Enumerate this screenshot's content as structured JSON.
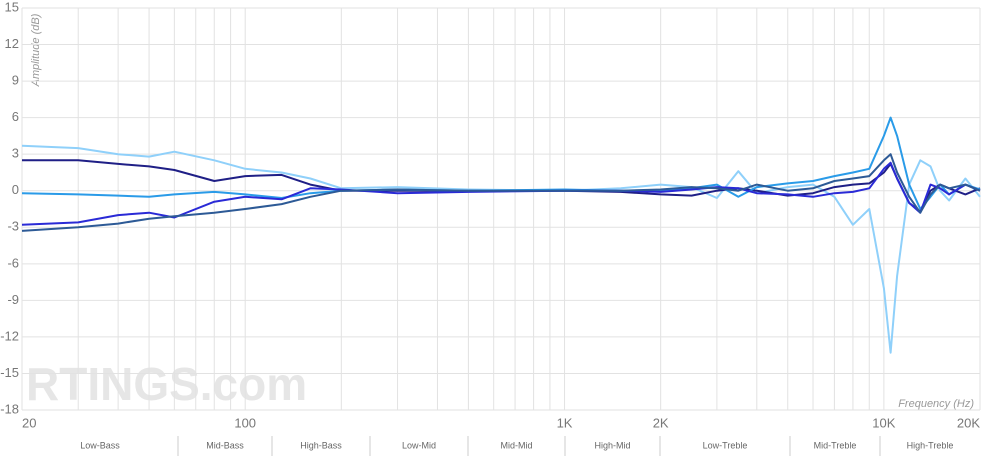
{
  "chart_data": {
    "type": "line",
    "log_x": true,
    "grid": true,
    "y_label": "Amplitude (dB)",
    "x_label": "Frequency (Hz)",
    "watermark": "RTINGS.com",
    "xlim": [
      20,
      20000
    ],
    "ylim": [
      -18,
      15
    ],
    "xticks": [
      20,
      100,
      {
        "value": 1000,
        "label": "1K"
      },
      {
        "value": 2000,
        "label": "2K"
      },
      {
        "value": 10000,
        "label": "10K"
      },
      {
        "value": 20000,
        "label": "20K"
      }
    ],
    "xgrid": [
      30,
      40,
      50,
      60,
      70,
      80,
      90,
      200,
      300,
      400,
      500,
      600,
      700,
      800,
      900,
      3000,
      4000,
      5000,
      6000,
      7000,
      8000,
      9000
    ],
    "yticks": [
      15,
      12,
      9,
      6,
      3,
      0,
      -3,
      -6,
      -9,
      -12,
      -15,
      -18
    ],
    "bands": [
      "Low-Bass",
      "Mid-Bass",
      "High-Bass",
      "Low-Mid",
      "Mid-Mid",
      "High-Mid",
      "Low-Treble",
      "Mid-Treble",
      "High-Treble"
    ],
    "x": [
      20,
      30,
      40,
      50,
      60,
      80,
      100,
      130,
      160,
      200,
      300,
      500,
      1000,
      1500,
      2000,
      2500,
      3000,
      3500,
      4000,
      5000,
      6000,
      7000,
      8000,
      9000,
      10000,
      10500,
      11000,
      12000,
      13000,
      14000,
      15000,
      16000,
      18000,
      20000
    ],
    "series": [
      {
        "color": "#8fd0fa",
        "values": [
          3.7,
          3.5,
          3.0,
          2.8,
          3.2,
          2.5,
          1.8,
          1.5,
          1.0,
          0.2,
          0.3,
          0.1,
          0,
          0.2,
          0.5,
          0.3,
          -0.6,
          1.6,
          -0.2,
          0.3,
          0.5,
          -0.5,
          -2.8,
          -1.5,
          -8,
          -13.3,
          -7,
          0.5,
          2.5,
          2.0,
          0,
          -0.8,
          1.0,
          -0.5
        ]
      },
      {
        "color": "#1f1f86",
        "values": [
          2.5,
          2.5,
          2.2,
          2.0,
          1.7,
          0.8,
          1.2,
          1.3,
          0.5,
          0,
          0,
          0,
          0,
          -0.1,
          -0.3,
          -0.4,
          0,
          0.2,
          0,
          -0.4,
          -0.2,
          0.3,
          0.5,
          0.6,
          1.5,
          2.2,
          1.0,
          -1.0,
          -1.7,
          0,
          0.5,
          0.2,
          -0.3,
          0.2
        ]
      },
      {
        "color": "#2a9be8",
        "values": [
          -0.2,
          -0.3,
          -0.4,
          -0.5,
          -0.3,
          -0.1,
          -0.3,
          -0.6,
          -0.2,
          0,
          0.1,
          0,
          0.1,
          0,
          0,
          0.2,
          0.5,
          -0.5,
          0.3,
          0.6,
          0.8,
          1.2,
          1.5,
          1.8,
          4.5,
          6.0,
          4.5,
          0.5,
          -1.5,
          -0.5,
          0.5,
          -0.3,
          0.5,
          0.1
        ]
      },
      {
        "color": "#2a2ad6",
        "values": [
          -2.8,
          -2.6,
          -2.0,
          -1.8,
          -2.2,
          -0.9,
          -0.5,
          -0.7,
          0.2,
          0.1,
          -0.2,
          -0.1,
          0,
          0,
          -0.1,
          0.1,
          0.3,
          0.2,
          -0.2,
          -0.3,
          -0.5,
          -0.2,
          -0.1,
          0.2,
          1.8,
          2.3,
          1.0,
          -1.0,
          -1.8,
          0.5,
          0.2,
          -0.3,
          0.5,
          0
        ]
      },
      {
        "color": "#2d5a96",
        "values": [
          -3.3,
          -3.0,
          -2.7,
          -2.3,
          -2.1,
          -1.8,
          -1.5,
          -1.1,
          -0.5,
          0,
          0.1,
          0,
          0,
          0,
          0.1,
          0.3,
          0.2,
          0,
          0.5,
          0,
          0.2,
          0.8,
          1.0,
          1.2,
          2.5,
          3.0,
          1.5,
          -0.5,
          -1.8,
          -0.3,
          0.5,
          0.2,
          0.5,
          0
        ]
      }
    ]
  }
}
